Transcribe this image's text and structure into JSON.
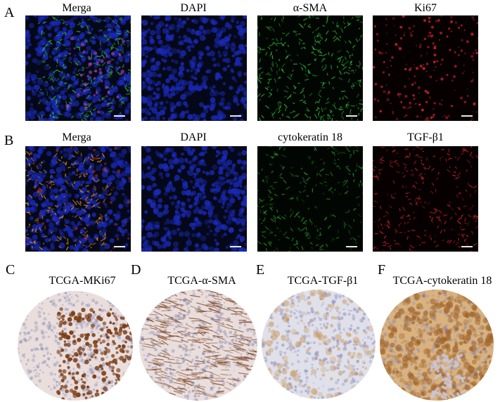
{
  "panels": {
    "A": {
      "letter": "A",
      "labels": [
        "Merga",
        "DAPI",
        "α-SMA",
        "Ki67"
      ]
    },
    "B": {
      "letter": "B",
      "labels": [
        "Merga",
        "DAPI",
        "cytokeratin 18",
        "TGF-β1"
      ]
    },
    "C": {
      "letter": "C",
      "title": "TCGA-MKi67"
    },
    "D": {
      "letter": "D",
      "title": "TCGA-α-SMA"
    },
    "E": {
      "letter": "E",
      "title": "TCGA-TGF-β1"
    },
    "F": {
      "letter": "F",
      "title": "TCGA-cytokeratin 18"
    }
  },
  "colors": {
    "dapi_blue": "#1a2ab8",
    "sma_green": "#2fc23a",
    "ki67_red": "#d0202a",
    "ihc_brown": "#7a3a12",
    "ihc_tan": "#c99a5e",
    "hematoxylin": "#8f8fb8"
  }
}
